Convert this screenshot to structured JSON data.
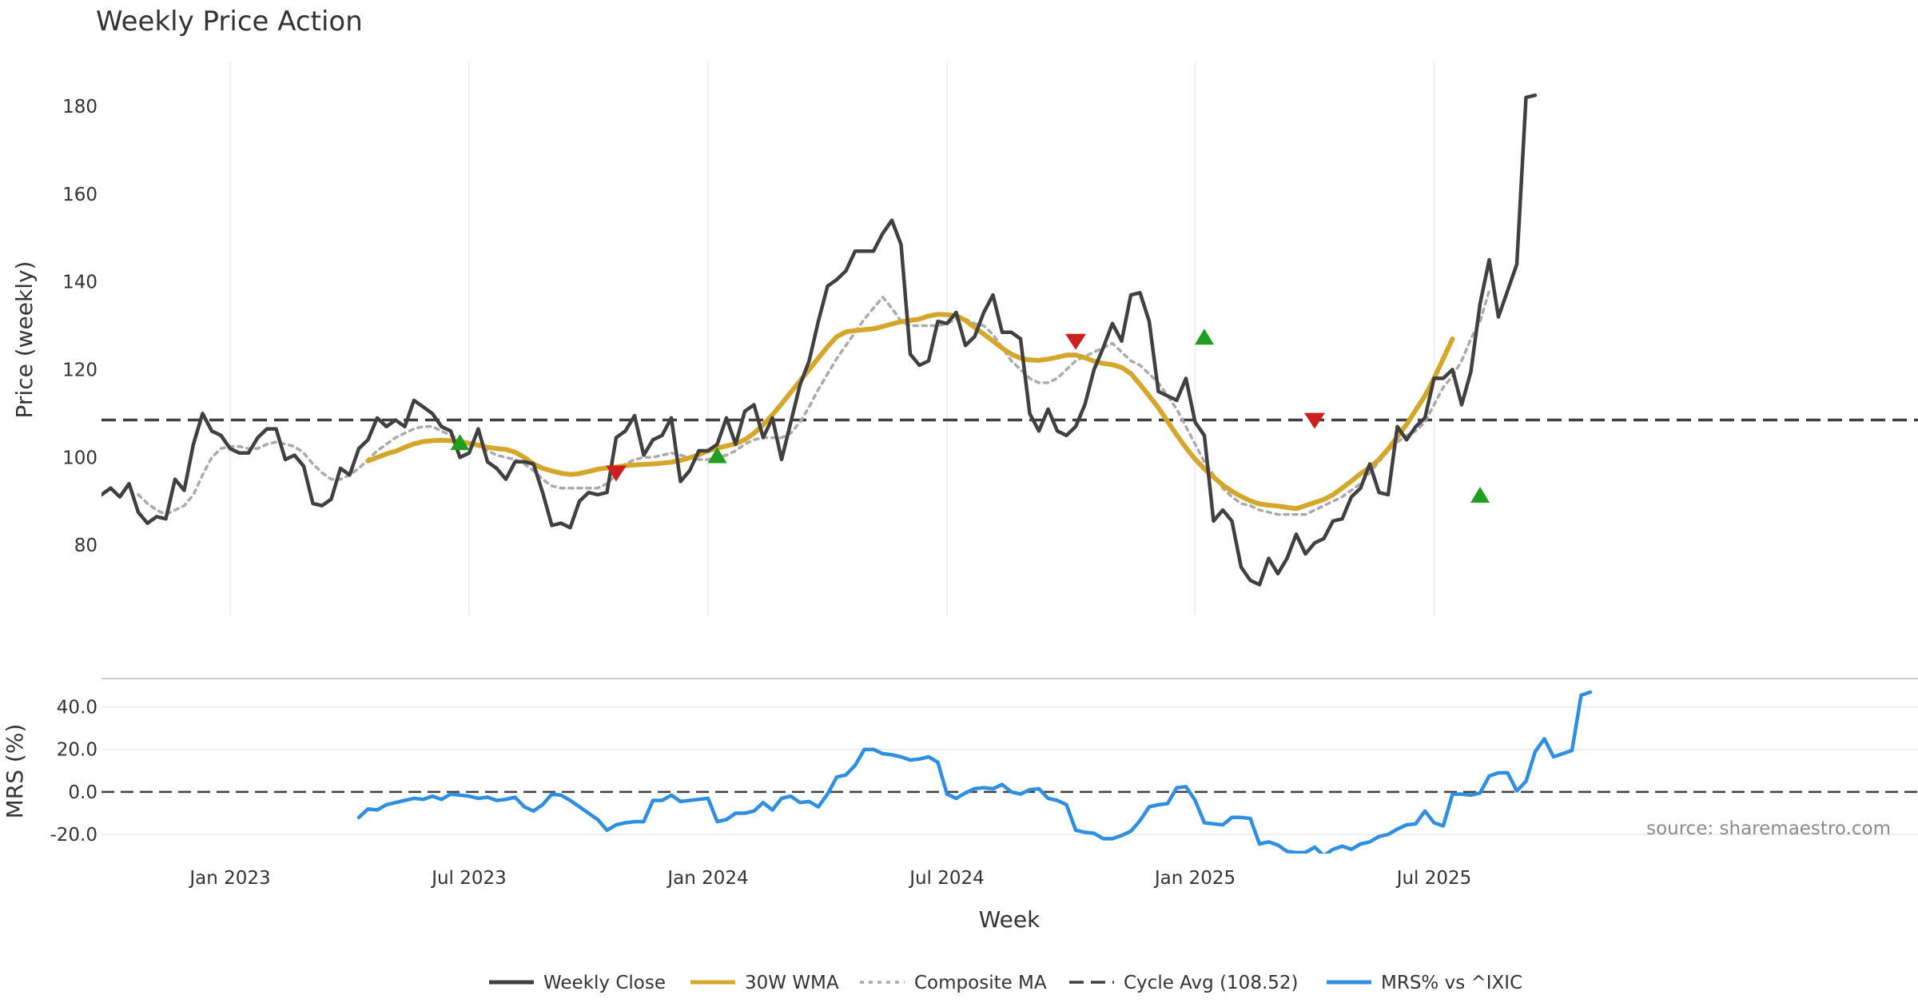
{
  "chart_data": [
    {
      "type": "line",
      "title": "Weekly Price Action",
      "ylabel": "Price (weekly)",
      "ylim": [
        64,
        190
      ],
      "yticks": [
        "80",
        "100",
        "120",
        "140",
        "160",
        "180"
      ],
      "x_ticks": [
        "Jan 2023",
        "Jul 2023",
        "Jan 2024",
        "Jul 2024",
        "Jan 2025",
        "Jul 2025"
      ],
      "cycle_avg": 108.52,
      "series": [
        {
          "name": "Weekly Close",
          "color": "#404040",
          "values": [
            91.5,
            93,
            91,
            94,
            87.5,
            85,
            86.5,
            86,
            95,
            92.5,
            103,
            110,
            106,
            105,
            102,
            101,
            101,
            104.5,
            106.5,
            106.5,
            99.5,
            100.5,
            98,
            89.5,
            89,
            90.5,
            97.5,
            96,
            102,
            104,
            109,
            107,
            108.5,
            107,
            113,
            111.5,
            110,
            107,
            106,
            100,
            101,
            106.5,
            99,
            97.5,
            95,
            99,
            99,
            98.5,
            92,
            84.5,
            85,
            84,
            90,
            92,
            91.5,
            92,
            104.5,
            106,
            109.5,
            100.5,
            104,
            105,
            109,
            94.5,
            97,
            101.5,
            101.5,
            103,
            109,
            103,
            110.5,
            112,
            104.5,
            109,
            99.5,
            108,
            116.5,
            122,
            131,
            139,
            140.5,
            142.5,
            147,
            147,
            147,
            151,
            154,
            148.5,
            123.5,
            121,
            122,
            131,
            130.5,
            133,
            125.5,
            127.5,
            133,
            137,
            128.5,
            128.5,
            127,
            110,
            106,
            111,
            106,
            105,
            107,
            112,
            120,
            125,
            130.5,
            126.5,
            137,
            137.5,
            131,
            115,
            114,
            113,
            118,
            108,
            105,
            85.5,
            88,
            85.5,
            75,
            72,
            71,
            77,
            73.5,
            77,
            82.5,
            78,
            80.5,
            81.5,
            85.5,
            86,
            91,
            93,
            98.5,
            92,
            91.5,
            107,
            104,
            107,
            109,
            118,
            118,
            120,
            112,
            119.5,
            135,
            145,
            132,
            138,
            144,
            182,
            182.5
          ]
        },
        {
          "name": "30W WMA",
          "color": "#D4A62A",
          "values": [
            null,
            null,
            null,
            null,
            null,
            null,
            null,
            null,
            null,
            null,
            null,
            null,
            null,
            null,
            null,
            null,
            null,
            null,
            null,
            null,
            null,
            null,
            null,
            null,
            null,
            null,
            null,
            null,
            null,
            99.2,
            100,
            100.8,
            101.4,
            102.3,
            103.1,
            103.6,
            103.8,
            103.9,
            103.8,
            103.6,
            103.2,
            102.8,
            102.3,
            102,
            101.8,
            101.2,
            100,
            98.5,
            97.5,
            96.9,
            96.4,
            96.1,
            96.3,
            96.8,
            97.3,
            97.6,
            97.8,
            98.1,
            98.3,
            98.4,
            98.5,
            98.7,
            98.9,
            99.3,
            99.9,
            100.6,
            101.5,
            102.1,
            102.6,
            103.1,
            104,
            105.5,
            107.4,
            109.7,
            112.2,
            114.8,
            117.4,
            120,
            122.6,
            125.2,
            127.5,
            128.6,
            128.9,
            129.1,
            129.3,
            129.8,
            130.4,
            130.9,
            131.2,
            131.5,
            132.2,
            132.6,
            132.5,
            132.3,
            131.2,
            129.6,
            128.1,
            126.5,
            124.9,
            123.5,
            122.6,
            122.2,
            122.1,
            122.4,
            122.8,
            123.3,
            123.3,
            122.7,
            121.9,
            121.4,
            121.1,
            120.5,
            119.1,
            116.6,
            114,
            111.3,
            108.2,
            105.1,
            102.2,
            99.6,
            97.4,
            95.5,
            93.7,
            92.3,
            91.1,
            90.1,
            89.4,
            89.1,
            88.9,
            88.6,
            88.3,
            89,
            89.7,
            90.4,
            91.5,
            93,
            94.6,
            96.3,
            97.7,
            99.5,
            101.9,
            104.7,
            107.5,
            110.8,
            114,
            118,
            122.5,
            127
          ]
        },
        {
          "name": "Composite MA",
          "color": "#AAAAAA",
          "values": [
            null,
            null,
            null,
            null,
            91.5,
            89.5,
            88,
            87,
            88,
            89,
            91.5,
            96,
            100,
            102,
            102.5,
            102.5,
            102,
            102,
            103,
            103.5,
            103,
            102.5,
            101,
            98.5,
            96.5,
            95,
            95,
            96,
            97.5,
            99.5,
            101.5,
            103,
            104.5,
            105.5,
            106.5,
            107,
            107,
            106,
            105,
            104,
            103,
            102.5,
            101.5,
            100.5,
            100,
            99.5,
            98.5,
            97,
            95,
            93.5,
            93,
            93,
            93,
            93,
            93,
            94,
            96,
            98.5,
            99.5,
            100,
            100,
            100.5,
            101,
            100.5,
            100,
            99.5,
            99.5,
            100,
            100.5,
            101.5,
            103,
            104,
            104.5,
            104.5,
            104.5,
            105.5,
            108,
            111.5,
            115.5,
            119,
            122.5,
            125.5,
            128.5,
            131.5,
            134,
            136.5,
            134,
            131,
            130,
            130,
            130,
            130,
            130.5,
            131.5,
            131.5,
            130.5,
            130,
            128,
            125,
            122,
            120,
            118,
            117,
            117,
            118,
            120,
            122,
            123,
            124,
            125,
            126,
            124,
            122,
            121,
            119,
            117,
            114,
            111,
            107,
            103,
            99,
            96,
            93,
            91,
            89.5,
            89,
            88,
            87.5,
            87,
            87,
            87,
            87,
            88,
            89,
            90,
            91,
            92.5,
            94,
            96.5,
            99,
            101.5,
            103.5,
            105,
            106,
            108,
            112,
            116,
            118.5,
            122,
            127,
            131,
            138
          ]
        }
      ],
      "markers": {
        "buy": [
          {
            "x": "2023-06-26",
            "y": 103.5
          },
          {
            "x": "2024-01-08",
            "y": 100.5
          },
          {
            "x": "2025-01-13",
            "y": 127.5
          },
          {
            "x": "2025-08-11",
            "y": 91.5
          }
        ],
        "sell": [
          {
            "x": "2023-10-23",
            "y": 96.5
          },
          {
            "x": "2024-10-07",
            "y": 126.5
          },
          {
            "x": "2025-04-07",
            "y": 108.5
          }
        ]
      }
    },
    {
      "type": "line",
      "ylabel": "MRS (%)",
      "ylim": [
        -29,
        53
      ],
      "yticks": [
        "40.0",
        "20.0",
        "0.0",
        "-20.0"
      ],
      "xlabel": "Week",
      "x_ticks": [
        "Jan 2023",
        "Jul 2023",
        "Jan 2024",
        "Jul 2024",
        "Jan 2025",
        "Jul 2025"
      ],
      "series": [
        {
          "name": "MRS% vs ^IXIC",
          "color": "#2E8EE0",
          "values": [
            null,
            null,
            null,
            null,
            null,
            null,
            null,
            null,
            null,
            null,
            null,
            null,
            null,
            null,
            null,
            null,
            null,
            null,
            null,
            null,
            null,
            null,
            null,
            null,
            null,
            null,
            null,
            null,
            -12,
            -8,
            -8.5,
            -6,
            -5,
            -4,
            -3,
            -3.5,
            -2,
            -3.5,
            -1,
            -1.5,
            -2,
            -3,
            -2.5,
            -4,
            -3.5,
            -2.5,
            -7,
            -9,
            -6,
            -1,
            -1.5,
            -4,
            -7,
            -10,
            -13,
            -18,
            -15.5,
            -14.5,
            -14,
            -14,
            -4,
            -4,
            -1.5,
            -4.5,
            -4,
            -3.5,
            -3,
            -14,
            -13,
            -10,
            -10,
            -9,
            -5,
            -8.5,
            -3,
            -2,
            -5,
            -4.5,
            -7,
            -1,
            7,
            8,
            12.5,
            20,
            20,
            18,
            17.5,
            16.5,
            15,
            15.5,
            16.5,
            14,
            -1,
            -3,
            -0.5,
            1.5,
            2,
            1.5,
            3.5,
            0,
            -1,
            1,
            1.5,
            -3,
            -4,
            -6,
            -18,
            -19,
            -19.5,
            -22,
            -22,
            -20.5,
            -18.5,
            -13.5,
            -7,
            -6,
            -5.5,
            2,
            2.5,
            -4,
            -14.5,
            -15,
            -15.5,
            -12,
            -12,
            -12.5,
            -24.5,
            -23.5,
            -25,
            -28,
            -28.5,
            -28.5,
            -26,
            -30,
            -27,
            -25.5,
            -27,
            -24.5,
            -23.5,
            -21,
            -20,
            -17.5,
            -15.5,
            -15,
            -9,
            -14.5,
            -16,
            -1,
            -1,
            -1.5,
            -0.5,
            7.5,
            9,
            9,
            0.5,
            5,
            19,
            25,
            16.5,
            18,
            19.5,
            45.5,
            47
          ]
        }
      ]
    }
  ],
  "legend": [
    {
      "label": "Weekly Close",
      "style": "solid",
      "color": "#404040"
    },
    {
      "label": "30W WMA",
      "style": "solid",
      "color": "#D4A62A"
    },
    {
      "label": "Composite MA",
      "style": "dotted",
      "color": "#AAAAAA"
    },
    {
      "label": "Cycle Avg (108.52)",
      "style": "dashed",
      "color": "#404040"
    },
    {
      "label": "MRS% vs ^IXIC",
      "style": "solid",
      "color": "#2E8EE0"
    }
  ],
  "source": "source: sharemaestro.com",
  "colors": {
    "buy": "#1F9E1F",
    "sell": "#CC1F1F",
    "grid": "#E8E8E8",
    "text": "#333333"
  }
}
